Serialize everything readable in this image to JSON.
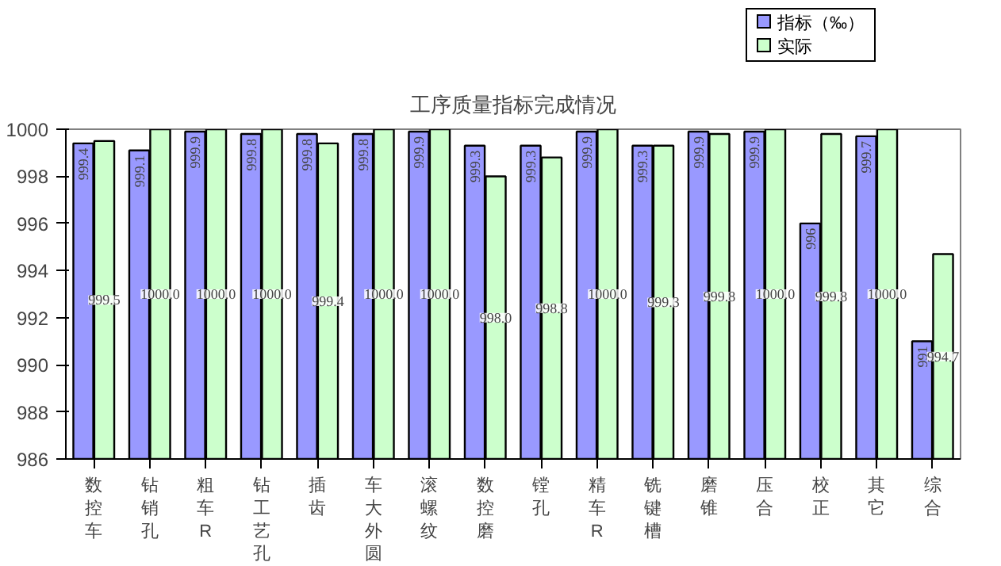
{
  "chart_data": {
    "type": "bar",
    "title": "工序质量指标完成情况",
    "categories": [
      "数控车",
      "钻销孔",
      "粗车R",
      "钻工艺孔",
      "插齿",
      "车大外圆",
      "滚螺纹",
      "数控磨",
      "镗孔",
      "精车R",
      "铣键槽",
      "磨锥",
      "压合",
      "校正",
      "其它",
      "综合"
    ],
    "series": [
      {
        "name": "指标（‰）",
        "color": "#9999ff",
        "values": [
          999.4,
          999.1,
          999.9,
          999.8,
          999.8,
          999.8,
          999.9,
          999.3,
          999.3,
          999.9,
          999.3,
          999.9,
          999.9,
          996,
          999.7,
          991
        ],
        "value_labels": [
          "999.4",
          "999.1",
          "999.9",
          "999.8",
          "999.8",
          "999.8",
          "999.9",
          "999.3",
          "999.3",
          "999.9",
          "999.3",
          "999.9",
          "999.9",
          "996",
          "999.7",
          "991"
        ]
      },
      {
        "name": "实际",
        "color": "#ccffcc",
        "values": [
          999.5,
          1000.0,
          1000.0,
          1000.0,
          999.4,
          1000.0,
          1000.0,
          998.0,
          998.8,
          1000.0,
          999.3,
          999.8,
          1000.0,
          999.8,
          1000.0,
          994.7
        ],
        "value_labels": [
          "999.5",
          "1000.0",
          "1000.0",
          "1000.0",
          "999.4",
          "1000.0",
          "1000.0",
          "998.0",
          "998.8",
          "1000.0",
          "999.3",
          "999.8",
          "1000.0",
          "999.8",
          "1000.0",
          "994.7"
        ]
      }
    ],
    "ylim": [
      986,
      1000
    ],
    "yticks": [
      986,
      988,
      990,
      992,
      994,
      996,
      998,
      1000
    ],
    "grid": false,
    "legend": "top right"
  }
}
